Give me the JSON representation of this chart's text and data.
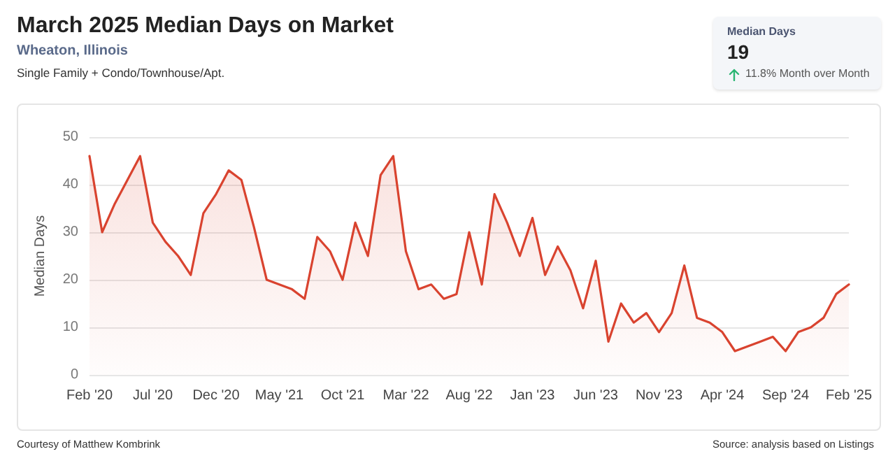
{
  "chart_data": {
    "type": "area",
    "title": "March 2025 Median Days on Market",
    "subtitle": "Wheaton, Illinois",
    "ylabel": "Median Days",
    "annotations": [
      "Single Family + Condo/Townhouse/Apt.",
      "Median Days",
      "19",
      "11.8% Month over Month",
      "Courtesy of Matthew Kombrink",
      "Source: analysis based on Listings"
    ],
    "categories": [
      "Feb '20",
      null,
      null,
      null,
      null,
      "Jul '20",
      null,
      null,
      null,
      null,
      "Dec '20",
      null,
      null,
      null,
      null,
      "May '21",
      null,
      null,
      null,
      null,
      "Oct '21",
      null,
      null,
      null,
      null,
      "Mar '22",
      null,
      null,
      null,
      null,
      "Aug '22",
      null,
      null,
      null,
      null,
      "Jan '23",
      null,
      null,
      null,
      null,
      "Jun '23",
      null,
      null,
      null,
      null,
      "Nov '23",
      null,
      null,
      null,
      null,
      "Apr '24",
      null,
      null,
      null,
      null,
      "Sep '24",
      null,
      null,
      null,
      null,
      "Feb '25"
    ],
    "series": [
      {
        "color": "#d9432f",
        "values": [
          46,
          30,
          36,
          41,
          46,
          32,
          28,
          25,
          21,
          34,
          38,
          43,
          41,
          31,
          20,
          19,
          18,
          16,
          29,
          26,
          20,
          32,
          25,
          42,
          46,
          26,
          18,
          19,
          16,
          17,
          30,
          19,
          38,
          32,
          25,
          33,
          21,
          27,
          22,
          14,
          24,
          7,
          15,
          11,
          13,
          9,
          13,
          23,
          12,
          11,
          9,
          5,
          6,
          7,
          8,
          5,
          9,
          10,
          12,
          17,
          19
        ]
      }
    ],
    "ylim": [
      0,
      50
    ],
    "yticks": [
      0,
      10,
      20,
      30,
      40,
      50
    ],
    "grid": "y",
    "marker": "none",
    "line_style": "solid"
  }
}
